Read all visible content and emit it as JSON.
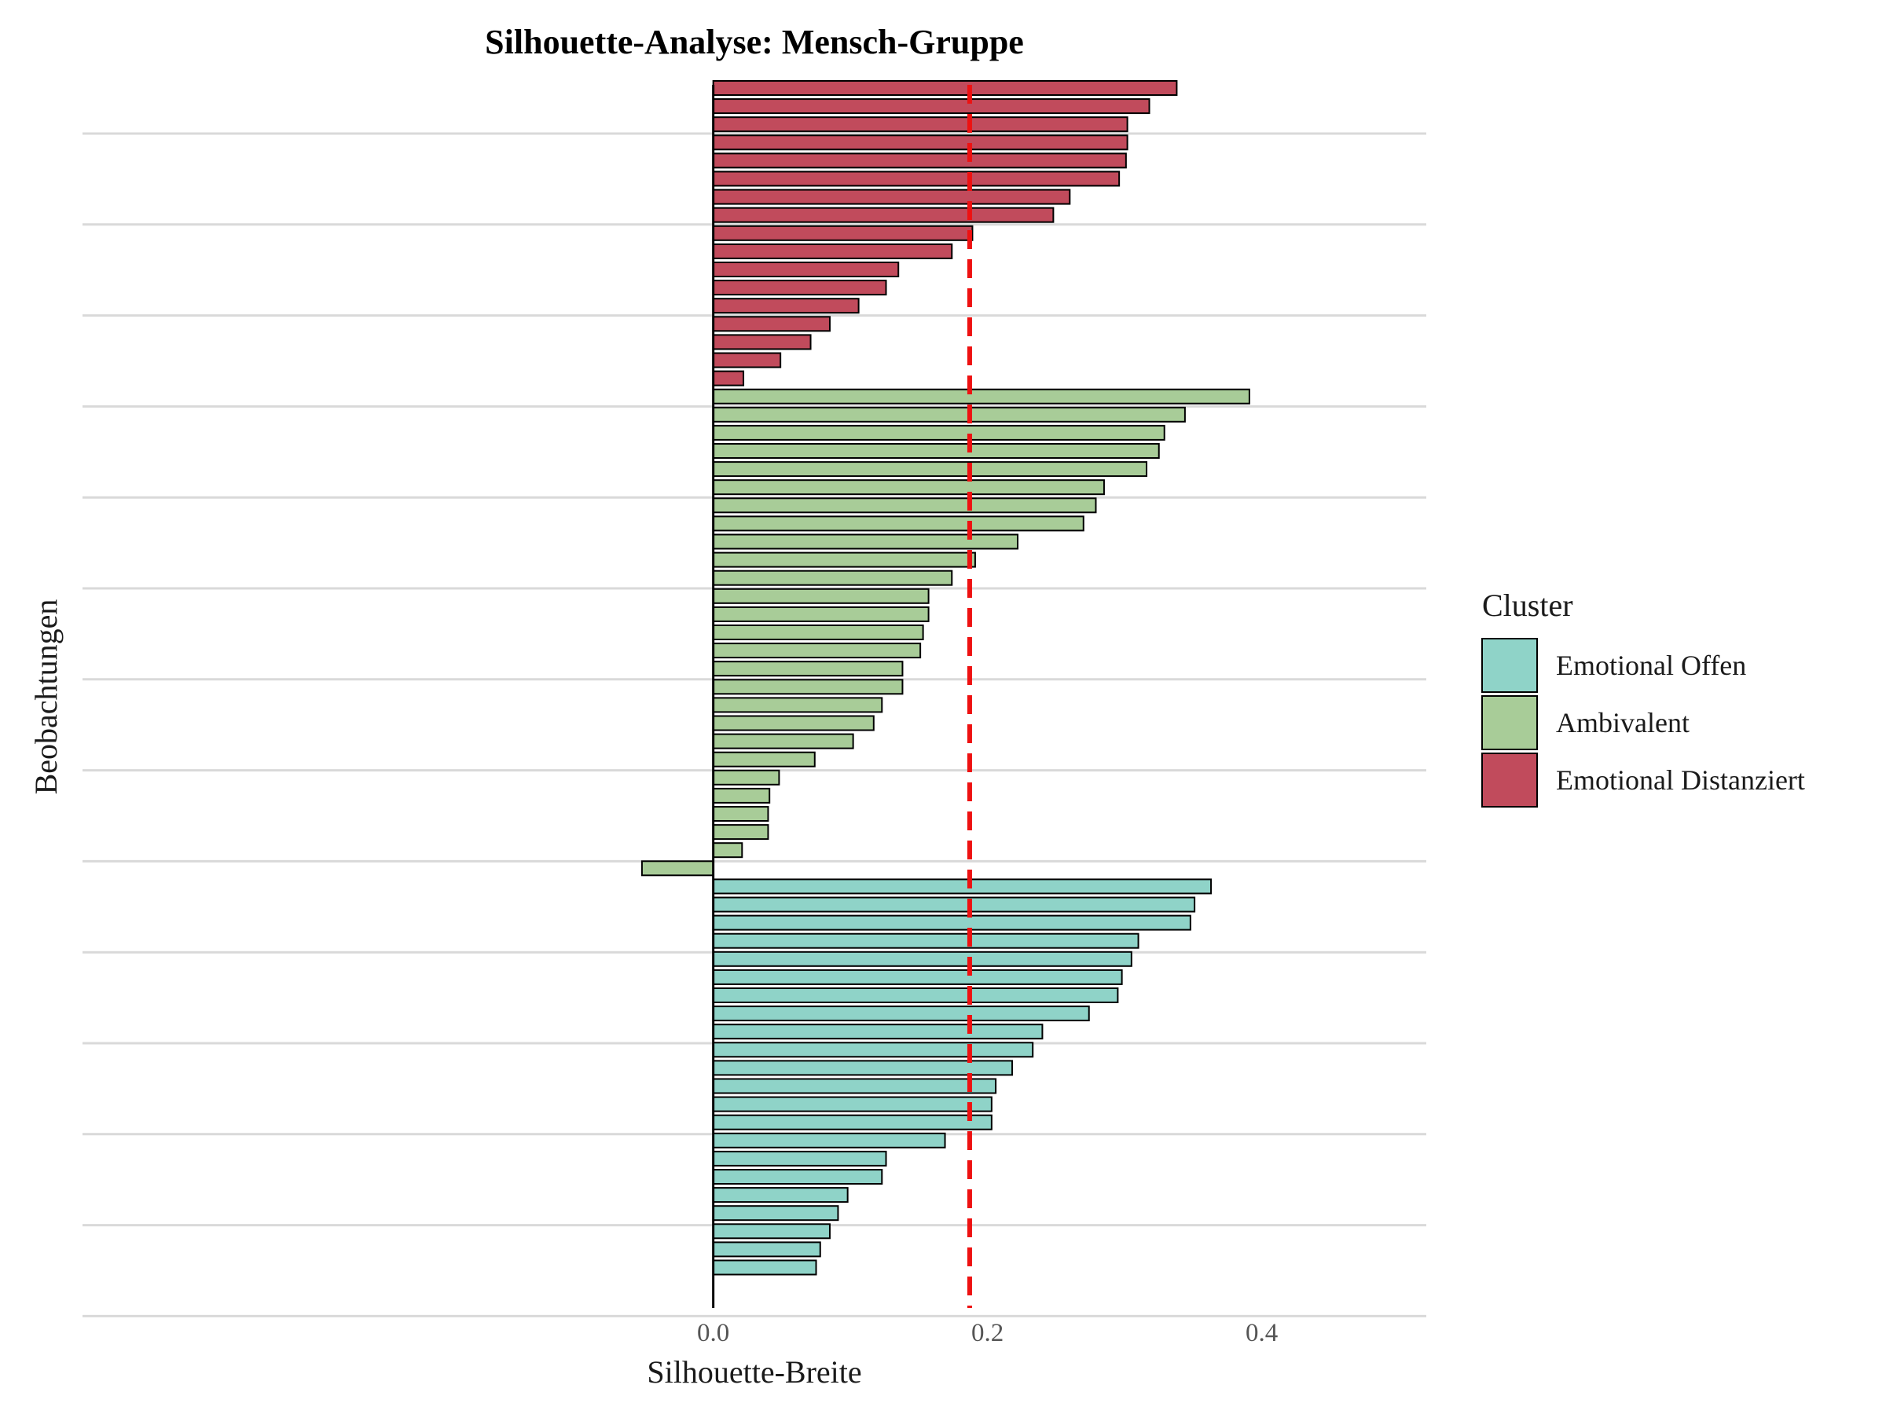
{
  "chart_data": {
    "type": "bar",
    "orientation": "horizontal",
    "title": "Silhouette-Analyse: Mensch-Gruppe",
    "xlabel": "Silhouette-Breite",
    "ylabel": "Beobachtungen",
    "xlim": [
      -0.46,
      0.52
    ],
    "x_ticks": [
      "0.0",
      "0.2",
      "0.4"
    ],
    "x_tick_values": [
      0.0,
      0.2,
      0.4
    ],
    "reference_line": {
      "value": 0.187,
      "color": "#ee1111",
      "style": "dashed"
    },
    "grid": "horizontal major lines",
    "legend": {
      "title": "Cluster",
      "placement": "right",
      "entries": [
        {
          "name": "Emotional Offen",
          "color": "#8fd3c8"
        },
        {
          "name": "Ambivalent",
          "color": "#a8cc98"
        },
        {
          "name": "Emotional Distanziert",
          "color": "#c14b5c"
        }
      ]
    },
    "series": [
      {
        "name": "Emotional Distanziert",
        "values": [
          0.338,
          0.318,
          0.302,
          0.302,
          0.301,
          0.296,
          0.26,
          0.248,
          0.189,
          0.174,
          0.135,
          0.126,
          0.106,
          0.085,
          0.071,
          0.049,
          0.022
        ]
      },
      {
        "name": "Ambivalent",
        "values": [
          0.391,
          0.344,
          0.329,
          0.325,
          0.316,
          0.285,
          0.279,
          0.27,
          0.222,
          0.191,
          0.174,
          0.157,
          0.157,
          0.153,
          0.151,
          0.138,
          0.138,
          0.123,
          0.117,
          0.102,
          0.074,
          0.048,
          0.041,
          0.04,
          0.04,
          0.021,
          -0.052
        ]
      },
      {
        "name": "Emotional Offen",
        "values": [
          0.363,
          0.351,
          0.348,
          0.31,
          0.305,
          0.298,
          0.295,
          0.274,
          0.24,
          0.233,
          0.218,
          0.206,
          0.203,
          0.203,
          0.169,
          0.126,
          0.123,
          0.098,
          0.091,
          0.085,
          0.078,
          0.075
        ]
      }
    ]
  }
}
